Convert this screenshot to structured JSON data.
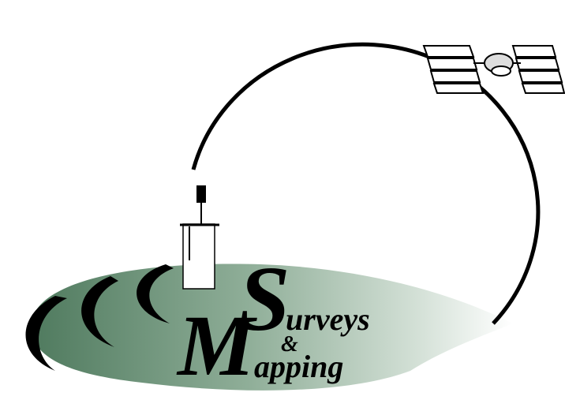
{
  "logo": {
    "initial_1": "S",
    "word_1": "urveys",
    "ampersand": "&",
    "initial_2": "M",
    "word_2": "apping"
  }
}
